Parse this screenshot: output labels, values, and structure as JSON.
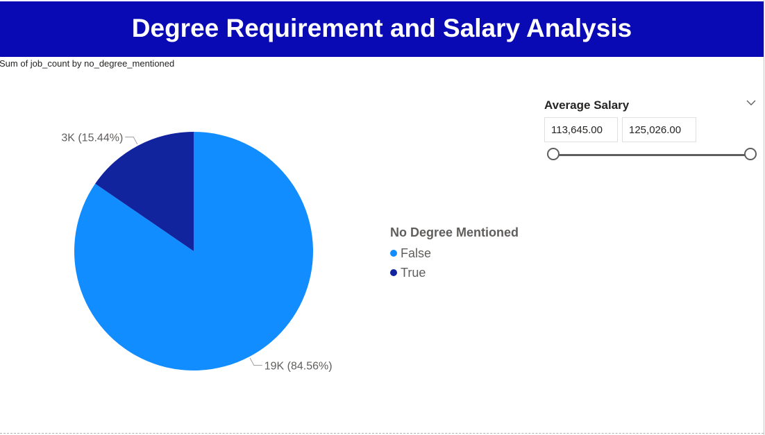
{
  "header": {
    "title": "Degree Requirement and Salary Analysis"
  },
  "visual": {
    "subtitle": "Sum of job_count by no_degree_mentioned"
  },
  "chart_data": {
    "type": "pie",
    "title": "Sum of job_count by no_degree_mentioned",
    "categories": [
      "False",
      "True"
    ],
    "values": [
      84.56,
      15.44
    ],
    "data_labels": [
      "19K (84.56%)",
      "3K (15.44%)"
    ],
    "colors": [
      "#118dff",
      "#12239e"
    ],
    "legend": {
      "title": "No Degree Mentioned",
      "placement": "right",
      "entries": [
        "False",
        "True"
      ]
    }
  },
  "slicer": {
    "title": "Average Salary",
    "min_value": "113,645.00",
    "max_value": "125,026.00",
    "chevron_icon": "chevron-down-icon"
  }
}
